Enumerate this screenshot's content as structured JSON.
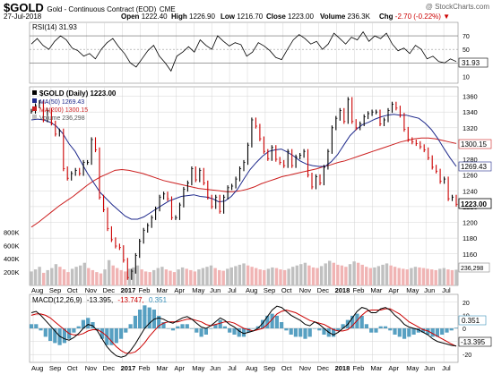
{
  "header": {
    "symbol": "$GOLD",
    "description": "Gold - Continuous Contract (EOD)",
    "exchange": "CME",
    "watermark": "@ StockCharts.com",
    "date": "27-Jul-2018",
    "open_label": "Open",
    "open": "1222.40",
    "high_label": "High",
    "high": "1226.90",
    "low_label": "Low",
    "low": "1216.70",
    "close_label": "Close",
    "close": "1223.00",
    "volume_label": "Volume",
    "volume": "236.3K",
    "change_label": "Chg",
    "change": "-2.70 (-0.22%)"
  },
  "colors": {
    "price_up": "#000000",
    "price_down": "#cc0000",
    "ma50": "#1f2a8c",
    "ma200": "#cc1f1f",
    "volume_up": "#c0c0c0",
    "volume_down": "#f0b4b4",
    "macd_line": "#000000",
    "signal_line": "#cc0000",
    "histogram": "#3a8fb7",
    "grid": "#d4d4d4"
  },
  "chart_data": [
    {
      "type": "line",
      "panel": "rsi",
      "legend": "RSI(14) 31.93",
      "y_ticks": [
        10,
        30,
        50,
        70
      ],
      "ylim": [
        0,
        90
      ],
      "current_value": "31.93",
      "current_value_label": "31.93",
      "reference_lines": [
        30,
        50,
        70
      ],
      "values": [
        58,
        66,
        56,
        50,
        62,
        70,
        64,
        52,
        48,
        40,
        44,
        36,
        50,
        60,
        66,
        54,
        44,
        30,
        24,
        36,
        48,
        56,
        40,
        30,
        18,
        40,
        46,
        54,
        46,
        64,
        56,
        50,
        70,
        62,
        55,
        60,
        57,
        40,
        46,
        60,
        55,
        48,
        38,
        35,
        50,
        64,
        72,
        66,
        58,
        62,
        50,
        58,
        74,
        66,
        58,
        68,
        64,
        76,
        62,
        70,
        66,
        74,
        58,
        48,
        52,
        44,
        56,
        50,
        36,
        40,
        32,
        30,
        36,
        32
      ]
    },
    {
      "type": "candlestick",
      "panel": "price",
      "legend": "$GOLD (Daily) 1223.00",
      "x_tick_labels": [
        "Aug",
        "Sep",
        "Oct",
        "Nov",
        "Dec",
        "2017",
        "Feb",
        "Mar",
        "Apr",
        "May",
        "Jun",
        "Jul",
        "Aug",
        "Sep",
        "Oct",
        "Nov",
        "Dec",
        "2018",
        "Feb",
        "Mar",
        "Apr",
        "May",
        "Jun",
        "Jul"
      ],
      "y_ticks": [
        1160,
        1180,
        1200,
        1220,
        1240,
        1260,
        1280,
        1300,
        1320,
        1340,
        1360
      ],
      "ylim": [
        1120,
        1372
      ],
      "last_price_label": "1223.00",
      "closes": [
        1341,
        1348,
        1352,
        1330,
        1342,
        1326,
        1312,
        1316,
        1268,
        1256,
        1262,
        1266,
        1262,
        1276,
        1276,
        1305,
        1292,
        1232,
        1216,
        1192,
        1178,
        1170,
        1168,
        1152,
        1130,
        1138,
        1158,
        1176,
        1190,
        1196,
        1206,
        1217,
        1232,
        1236,
        1230,
        1206,
        1206,
        1222,
        1242,
        1250,
        1268,
        1254,
        1266,
        1250,
        1232,
        1220,
        1232,
        1214,
        1232,
        1244,
        1246,
        1255,
        1268,
        1276,
        1298,
        1330,
        1322,
        1306,
        1290,
        1281,
        1295,
        1280,
        1276,
        1272,
        1290,
        1272,
        1283,
        1285,
        1290,
        1260,
        1245,
        1258,
        1250,
        1270,
        1290,
        1320,
        1332,
        1342,
        1328,
        1356,
        1328,
        1320,
        1325,
        1334,
        1338,
        1340,
        1340,
        1325,
        1330,
        1342,
        1350,
        1345,
        1336,
        1318,
        1305,
        1302,
        1300,
        1296,
        1292,
        1282,
        1270,
        1265,
        1252,
        1255,
        1230,
        1232,
        1223
      ],
      "ma_series": [
        {
          "name": "MA(50) 1269.43",
          "values": [
            1330,
            1331,
            1330,
            1327,
            1322,
            1313,
            1300,
            1290,
            1276,
            1262,
            1250,
            1238,
            1230,
            1222,
            1215,
            1208,
            1204,
            1204,
            1207,
            1212,
            1217,
            1222,
            1227,
            1230,
            1233,
            1234,
            1235,
            1233,
            1232,
            1230,
            1226,
            1227,
            1233,
            1242,
            1255,
            1267,
            1276,
            1284,
            1290,
            1292,
            1293,
            1289,
            1284,
            1278,
            1274,
            1272,
            1271,
            1271,
            1277,
            1286,
            1298,
            1310,
            1318,
            1324,
            1327,
            1331,
            1334,
            1336,
            1337,
            1336,
            1336,
            1334,
            1332,
            1326,
            1318,
            1307,
            1294,
            1282,
            1271
          ],
          "current_label": "1269.43"
        },
        {
          "name": "MA(200) 1300.15",
          "values": [
            1194,
            1200,
            1207,
            1214,
            1221,
            1227,
            1233,
            1240,
            1247,
            1253,
            1258,
            1262,
            1266,
            1267,
            1266,
            1264,
            1262,
            1259,
            1256,
            1253,
            1251,
            1249,
            1247,
            1245,
            1243,
            1242,
            1241,
            1240,
            1239,
            1239,
            1240,
            1242,
            1245,
            1249,
            1252,
            1255,
            1258,
            1260,
            1262,
            1264,
            1266,
            1268,
            1271,
            1273,
            1276,
            1278,
            1281,
            1284,
            1287,
            1290,
            1293,
            1296,
            1299,
            1302,
            1304,
            1306,
            1307,
            1307,
            1306,
            1304,
            1302,
            1300
          ],
          "current_label": "1300.15"
        }
      ]
    },
    {
      "type": "bar",
      "panel": "volume",
      "legend": "Volume 236,298",
      "y_ticks": [
        "200K",
        "400K",
        "600K",
        "800K"
      ],
      "ylim": [
        0,
        900000
      ],
      "current_value_label": "236,298",
      "values": [
        210,
        240,
        280,
        190,
        230,
        260,
        320,
        280,
        240,
        200,
        250,
        280,
        300,
        340,
        260,
        230,
        200,
        180,
        240,
        380,
        300,
        260,
        230,
        210,
        250,
        270,
        300,
        240,
        210,
        200,
        230,
        260,
        280,
        240,
        220,
        200,
        240,
        270,
        250,
        230,
        210,
        240,
        260,
        280,
        300,
        260,
        230,
        220,
        250,
        270,
        290,
        310,
        330,
        300,
        280,
        260,
        240,
        230,
        250,
        270,
        260,
        240,
        230,
        250,
        280,
        300,
        320,
        340,
        300,
        270,
        260,
        290,
        330,
        370,
        340,
        310,
        300,
        280,
        320,
        360,
        340,
        310,
        280,
        260,
        270,
        290,
        310,
        330,
        300,
        280,
        260,
        250,
        240,
        260,
        280,
        270,
        260,
        250,
        240,
        230,
        250,
        260,
        240,
        230,
        236
      ]
    },
    {
      "type": "line",
      "panel": "macd",
      "legend": "MACD(12,26,9) -13.395, -13.747, 0.351",
      "legend_parts": [
        "MACD(12,26,9)",
        "-13.395,",
        "-13.747,",
        "0.351"
      ],
      "y_ticks": [
        -20,
        -10,
        0,
        10,
        20
      ],
      "ylim": [
        -26,
        26
      ],
      "histogram_label": "0.351",
      "macd_label": "-13.395",
      "macd": [
        12,
        13,
        10,
        6,
        2,
        -2,
        -6,
        -8,
        -9,
        -7,
        -4,
        0,
        3,
        2,
        -2,
        -8,
        -14,
        -18,
        -21,
        -22,
        -21,
        -17,
        -12,
        -6,
        0,
        4,
        7,
        8,
        7,
        5,
        4,
        6,
        8,
        9,
        7,
        4,
        1,
        0,
        2,
        5,
        8,
        6,
        3,
        1,
        -2,
        -4,
        -3,
        -2,
        0,
        4,
        9,
        14,
        17,
        16,
        13,
        10,
        8,
        6,
        3,
        2,
        5,
        3,
        0,
        -3,
        -5,
        -3,
        0,
        3,
        8,
        13,
        16,
        15,
        12,
        12,
        15,
        16,
        14,
        10,
        7,
        3,
        1,
        0,
        -1,
        -3,
        -5,
        -8,
        -10,
        -11,
        -12,
        -13,
        -13.4
      ],
      "signal": [
        10,
        11,
        11,
        10,
        8,
        5,
        2,
        -1,
        -4,
        -5,
        -5,
        -4,
        -2,
        -1,
        -1,
        -3,
        -6,
        -10,
        -14,
        -17,
        -19,
        -19,
        -18,
        -15,
        -11,
        -6,
        -2,
        2,
        4,
        5,
        5,
        5,
        6,
        7,
        7,
        6,
        5,
        3,
        2,
        3,
        4,
        5,
        5,
        4,
        2,
        0,
        -1,
        -2,
        -1,
        0,
        3,
        7,
        11,
        13,
        14,
        13,
        12,
        10,
        8,
        6,
        5,
        4,
        3,
        1,
        -1,
        -2,
        -2,
        -1,
        2,
        6,
        10,
        13,
        14,
        14,
        14,
        15,
        15,
        13,
        11,
        8,
        5,
        3,
        1,
        -1,
        -2,
        -4,
        -6,
        -8,
        -10,
        -12,
        -13.7
      ]
    }
  ]
}
